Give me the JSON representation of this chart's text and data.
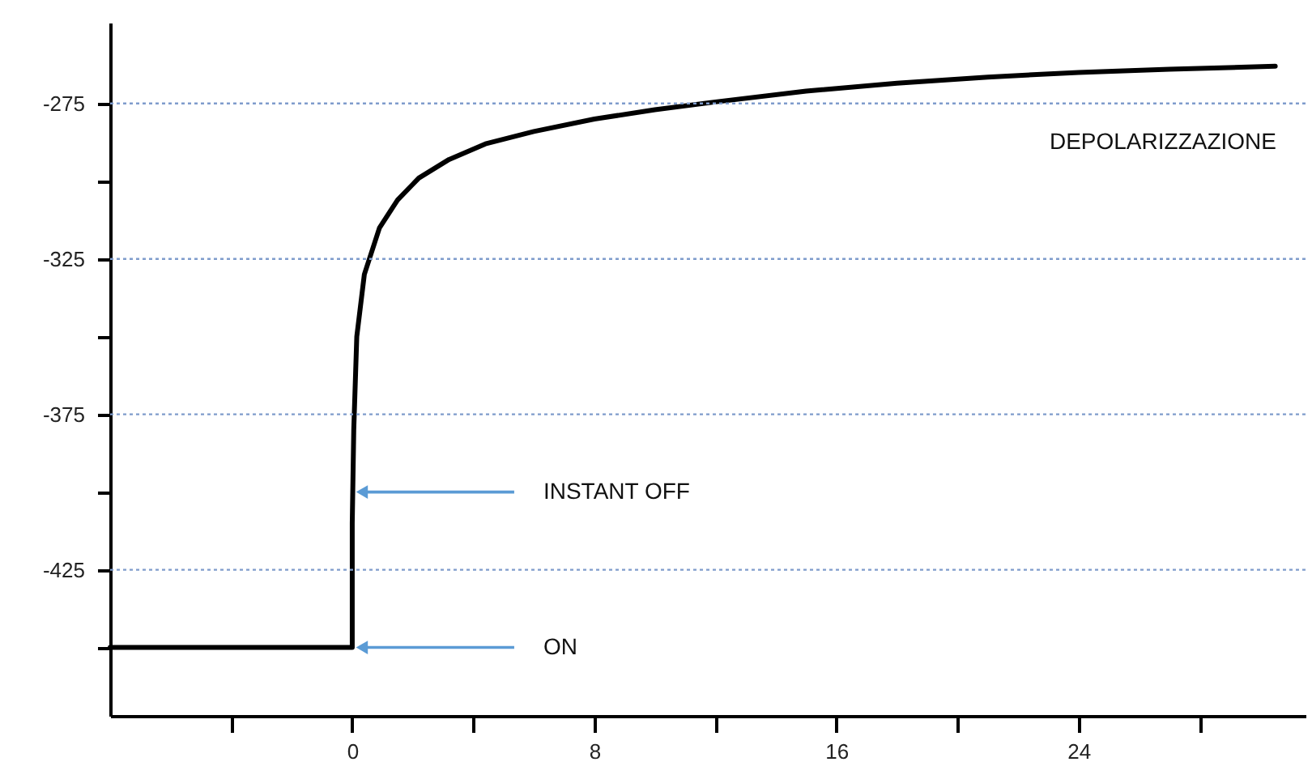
{
  "chart_data": {
    "type": "line",
    "x": [
      -8,
      0,
      0,
      0.05,
      0.15,
      0.4,
      0.9,
      1.5,
      2.2,
      3.2,
      4.4,
      6,
      8,
      10,
      12,
      15,
      18,
      21,
      24,
      27,
      30.5
    ],
    "series": [
      {
        "color": "#000000",
        "values": [
          -450,
          -450,
          -410,
          -380,
          -350,
          -330,
          -315,
          -306,
          -299,
          -293,
          -288,
          -284,
          -280,
          -277,
          -274.5,
          -271,
          -268.5,
          -266.5,
          -265,
          -264,
          -263
        ]
      }
    ],
    "xlim": [
      -8,
      31.5
    ],
    "xticks": [
      {
        "value": -4,
        "label": null
      },
      0,
      {
        "value": 4,
        "label": null
      },
      8,
      {
        "value": 12,
        "label": null
      },
      16,
      {
        "value": 20,
        "label": null
      },
      24,
      {
        "value": 28,
        "label": null
      }
    ],
    "ylim": [
      -472,
      -249
    ],
    "yticks": [
      {
        "value": -450,
        "label": null
      },
      -425,
      {
        "value": -400,
        "label": null
      },
      -375,
      {
        "value": -350,
        "label": null
      },
      -325,
      {
        "value": -300,
        "label": null
      },
      -275
    ],
    "grid": "y",
    "marker": "none",
    "line_style": "solid",
    "annotations": [
      "DEPOLARIZZAZIONE",
      {
        "text": "INSTANT OFF",
        "x": 0,
        "y": -400
      },
      {
        "text": "ON",
        "x": 0,
        "y": -450
      }
    ]
  }
}
